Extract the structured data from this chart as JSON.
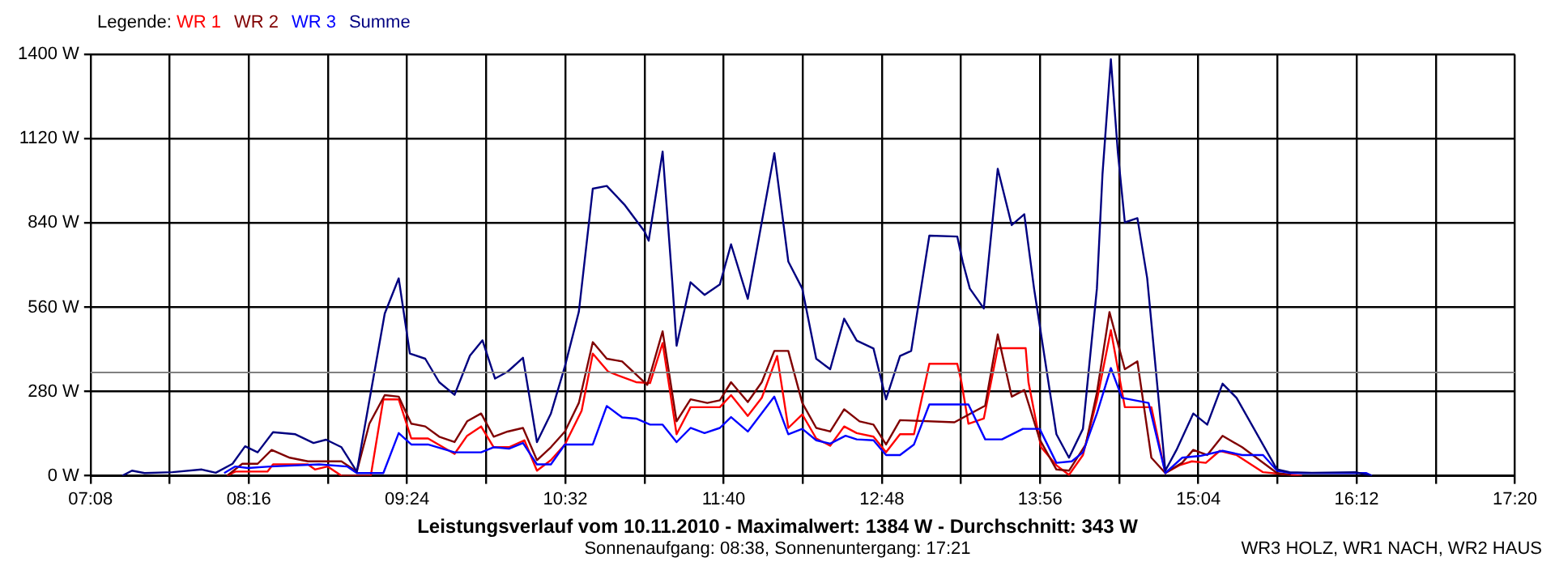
{
  "chart_data": {
    "type": "line",
    "title": "Leistungsverlauf vom 10.11.2010 - Maximalwert: 1384 W - Durchschnitt: 343 W",
    "subtitle": "Sonnenaufgang: 08:38, Sonnenuntergang: 17:21",
    "legend_title": "Legende:",
    "annotations": [
      "WR3 HOLZ, WR1 NACH, WR2 HAUS"
    ],
    "legend": "top left",
    "grid": true,
    "marker": "none",
    "line_style": "solid",
    "xlim": [
      7.1333,
      17.3333
    ],
    "xticks": [
      {
        "value": 7.1333,
        "label": "07:08"
      },
      {
        "value": 7.7,
        "label": null
      },
      {
        "value": 8.2667,
        "label": "08:16"
      },
      {
        "value": 8.8333,
        "label": null
      },
      {
        "value": 9.4,
        "label": "09:24"
      },
      {
        "value": 9.9667,
        "label": null
      },
      {
        "value": 10.5333,
        "label": "10:32"
      },
      {
        "value": 11.1,
        "label": null
      },
      {
        "value": 11.6667,
        "label": "11:40"
      },
      {
        "value": 12.2333,
        "label": null
      },
      {
        "value": 12.8,
        "label": "12:48"
      },
      {
        "value": 13.3667,
        "label": null
      },
      {
        "value": 13.9333,
        "label": "13:56"
      },
      {
        "value": 14.5,
        "label": null
      },
      {
        "value": 15.0667,
        "label": "15:04"
      },
      {
        "value": 15.6333,
        "label": null
      },
      {
        "value": 16.2,
        "label": "16:12"
      },
      {
        "value": 16.7667,
        "label": null
      },
      {
        "value": 17.3333,
        "label": "17:20"
      }
    ],
    "ylim": [
      0,
      1400
    ],
    "yticks": [
      {
        "value": 0,
        "label": "0 W"
      },
      {
        "value": 280,
        "label": "280 W"
      },
      {
        "value": 560,
        "label": "560 W"
      },
      {
        "value": 840,
        "label": "840 W"
      },
      {
        "value": 1120,
        "label": "1120 W"
      },
      {
        "value": 1400,
        "label": "1400 W"
      }
    ],
    "ref_lines": [
      {
        "axis": "y",
        "value": 343,
        "color": "#808080"
      }
    ],
    "series": [
      {
        "name": "WR 1",
        "color": "#ff0000",
        "x": [
          8.11,
          8.17,
          8.4,
          8.44,
          8.69,
          8.74,
          8.83,
          8.93,
          9.14,
          9.23,
          9.34,
          9.43,
          9.55,
          9.74,
          9.83,
          9.93,
          10.02,
          10.13,
          10.24,
          10.33,
          10.43,
          10.53,
          10.65,
          10.73,
          10.84,
          11.04,
          11.14,
          11.23,
          11.33,
          11.43,
          11.64,
          11.72,
          11.84,
          11.94,
          12.05,
          12.13,
          12.23,
          12.33,
          12.43,
          12.53,
          12.62,
          12.74,
          12.83,
          12.93,
          13.03,
          13.14,
          13.34,
          13.37,
          13.42,
          13.53,
          13.63,
          13.83,
          13.85,
          13.94,
          14.05,
          14.14,
          14.24,
          14.34,
          14.44,
          14.54,
          14.73,
          14.83,
          14.93,
          15.02,
          15.12,
          15.22,
          15.34,
          15.53,
          15.73,
          15.81
        ],
        "values": [
          0,
          14,
          14,
          38,
          38,
          21,
          31,
          0,
          0,
          254,
          254,
          124,
          124,
          73,
          133,
          164,
          95,
          95,
          118,
          17,
          52,
          104,
          216,
          406,
          346,
          311,
          308,
          441,
          138,
          228,
          228,
          268,
          199,
          259,
          398,
          159,
          204,
          124,
          100,
          164,
          142,
          130,
          78,
          138,
          138,
          372,
          372,
          311,
          173,
          190,
          424,
          424,
          311,
          95,
          35,
          3,
          69,
          251,
          484,
          228,
          228,
          9,
          35,
          48,
          43,
          83,
          69,
          12,
          3,
          0
        ]
      },
      {
        "name": "WR 2",
        "color": "#800000",
        "x": [
          8.11,
          8.22,
          8.33,
          8.43,
          8.56,
          8.69,
          8.93,
          9.04,
          9.13,
          9.24,
          9.34,
          9.43,
          9.53,
          9.63,
          9.74,
          9.83,
          9.93,
          10.02,
          10.12,
          10.23,
          10.33,
          10.43,
          10.53,
          10.63,
          10.73,
          10.83,
          10.94,
          11.12,
          11.23,
          11.33,
          11.43,
          11.55,
          11.64,
          11.72,
          11.84,
          11.94,
          12.03,
          12.13,
          12.23,
          12.33,
          12.43,
          12.53,
          12.64,
          12.74,
          12.83,
          12.93,
          13.32,
          13.54,
          13.63,
          13.73,
          13.82,
          13.93,
          14.05,
          14.14,
          14.26,
          14.34,
          14.43,
          14.54,
          14.63,
          14.73,
          14.83,
          14.95,
          15.03,
          15.13,
          15.24,
          15.38,
          15.63,
          15.73
        ],
        "values": [
          0,
          40,
          40,
          86,
          60,
          48,
          48,
          14,
          173,
          268,
          263,
          173,
          164,
          130,
          112,
          181,
          207,
          130,
          147,
          159,
          52,
          95,
          147,
          242,
          444,
          389,
          380,
          302,
          480,
          181,
          254,
          242,
          251,
          311,
          245,
          311,
          415,
          415,
          242,
          159,
          147,
          221,
          181,
          170,
          104,
          185,
          178,
          233,
          470,
          263,
          285,
          121,
          21,
          17,
          104,
          276,
          544,
          354,
          380,
          60,
          9,
          43,
          86,
          69,
          133,
          95,
          9,
          3
        ]
      },
      {
        "name": "WR 3",
        "color": "#0000ff",
        "x": [
          8.09,
          8.17,
          8.26,
          8.42,
          8.77,
          8.97,
          9.04,
          9.23,
          9.34,
          9.43,
          9.55,
          9.74,
          9.93,
          10.02,
          10.13,
          10.23,
          10.33,
          10.43,
          10.53,
          10.73,
          10.83,
          10.94,
          11.04,
          11.14,
          11.23,
          11.33,
          11.43,
          11.53,
          11.64,
          11.72,
          11.84,
          12.03,
          12.13,
          12.23,
          12.33,
          12.43,
          12.54,
          12.62,
          12.74,
          12.83,
          12.93,
          13.03,
          13.14,
          13.42,
          13.54,
          13.66,
          13.81,
          13.93,
          14.05,
          14.16,
          14.24,
          14.34,
          14.44,
          14.52,
          14.71,
          14.83,
          14.95,
          15.08,
          15.24,
          15.38,
          15.53,
          15.63,
          15.73,
          16.27,
          16.31
        ],
        "values": [
          9,
          31,
          26,
          31,
          38,
          31,
          9,
          9,
          142,
          104,
          104,
          78,
          78,
          95,
          90,
          109,
          38,
          38,
          104,
          104,
          232,
          194,
          190,
          170,
          170,
          112,
          159,
          142,
          159,
          195,
          147,
          263,
          138,
          156,
          118,
          107,
          133,
          121,
          118,
          69,
          69,
          104,
          237,
          237,
          121,
          121,
          156,
          156,
          43,
          48,
          78,
          207,
          358,
          259,
          242,
          9,
          60,
          66,
          83,
          69,
          69,
          17,
          9,
          9,
          0
        ]
      },
      {
        "name": "Summe",
        "color": "#000080",
        "x": [
          7.36,
          7.43,
          7.52,
          7.72,
          7.93,
          8.03,
          8.15,
          8.24,
          8.33,
          8.44,
          8.6,
          8.73,
          8.82,
          8.93,
          9.04,
          9.24,
          9.34,
          9.42,
          9.53,
          9.63,
          9.74,
          9.85,
          9.94,
          10.03,
          10.12,
          10.23,
          10.33,
          10.43,
          10.53,
          10.63,
          10.73,
          10.83,
          10.96,
          11.1,
          11.13,
          11.23,
          11.3,
          11.33,
          11.43,
          11.53,
          11.64,
          11.72,
          11.84,
          12.03,
          12.13,
          12.23,
          12.33,
          12.43,
          12.53,
          12.62,
          12.74,
          12.83,
          12.93,
          13.01,
          13.14,
          13.34,
          13.38,
          13.43,
          13.53,
          13.63,
          13.73,
          13.82,
          13.89,
          14.05,
          14.14,
          14.24,
          14.34,
          14.38,
          14.44,
          14.49,
          14.54,
          14.63,
          14.7,
          14.83,
          14.91,
          15.03,
          15.13,
          15.24,
          15.34,
          15.63,
          15.72,
          15.88,
          16.19,
          16.31
        ],
        "values": [
          0,
          17,
          9,
          12,
          21,
          10,
          40,
          98,
          78,
          145,
          138,
          109,
          120,
          95,
          14,
          539,
          656,
          406,
          389,
          311,
          269,
          399,
          450,
          323,
          346,
          392,
          112,
          207,
          363,
          545,
          954,
          963,
          899,
          812,
          781,
          1077,
          639,
          432,
          643,
          601,
          636,
          769,
          588,
          1072,
          712,
          622,
          389,
          354,
          522,
          449,
          423,
          254,
          398,
          415,
          798,
          795,
          709,
          622,
          556,
          1020,
          833,
          869,
          622,
          138,
          60,
          156,
          622,
          1002,
          1384,
          1075,
          842,
          856,
          657,
          17,
          86,
          207,
          170,
          306,
          259,
          21,
          12,
          10,
          12,
          0
        ]
      }
    ]
  }
}
